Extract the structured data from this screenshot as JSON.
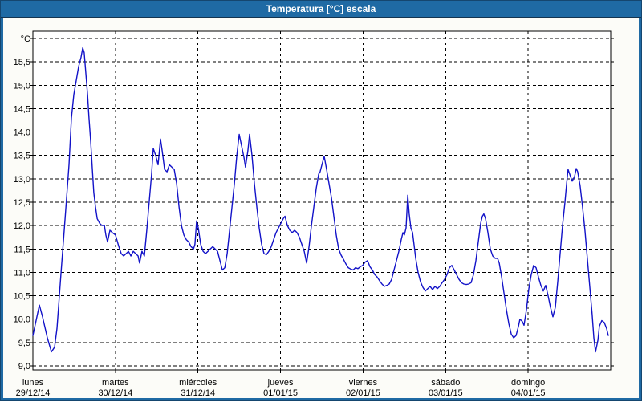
{
  "window": {
    "title": "Temperatura [°C] escala"
  },
  "colors": {
    "titlebar": "#1f6aa4",
    "titlebar_border": "#143450",
    "client_background": "#fcfcf8",
    "plot_background": "#ffffff",
    "grid": "#000000",
    "series_line": "#1212c8",
    "axis_text": "#000000"
  },
  "chart_data": {
    "type": "line",
    "title": "Temperatura [°C] escala",
    "grid": true,
    "y_axis": {
      "unit_label": "°C",
      "min": 9.0,
      "max": 16.0,
      "gridline_step": 0.5,
      "tick_labels": [
        "15,5",
        "15,0",
        "14,5",
        "14,0",
        "13,5",
        "13,0",
        "12,5",
        "12,0",
        "11,5",
        "11,0",
        "10,5",
        "10,0",
        "9,5",
        "9,0"
      ]
    },
    "x_axis": {
      "hours_total": 168,
      "days": [
        {
          "weekday": "lunes",
          "date": "29/12/14"
        },
        {
          "weekday": "martes",
          "date": "30/12/14"
        },
        {
          "weekday": "miércoles",
          "date": "31/12/14"
        },
        {
          "weekday": "jueves",
          "date": "01/01/15"
        },
        {
          "weekday": "viernes",
          "date": "02/01/15"
        },
        {
          "weekday": "sábado",
          "date": "03/01/15"
        },
        {
          "weekday": "domingo",
          "date": "04/01/15"
        }
      ]
    },
    "series": [
      {
        "name": "temperatura",
        "color": "#1212c8",
        "points": [
          [
            0,
            9.65
          ],
          [
            1.9,
            10.3
          ],
          [
            2.8,
            10.05
          ],
          [
            4.2,
            9.6
          ],
          [
            5.4,
            9.3
          ],
          [
            6.3,
            9.4
          ],
          [
            7,
            9.8
          ],
          [
            8.2,
            11
          ],
          [
            9.3,
            12.1
          ],
          [
            10.5,
            13.3
          ],
          [
            11.2,
            14.3
          ],
          [
            11.9,
            14.8
          ],
          [
            12.6,
            15.1
          ],
          [
            13.3,
            15.4
          ],
          [
            14,
            15.6
          ],
          [
            14.5,
            15.8
          ],
          [
            14.9,
            15.7
          ],
          [
            15.4,
            15.25
          ],
          [
            15.9,
            14.8
          ],
          [
            16.3,
            14.3
          ],
          [
            16.8,
            13.8
          ],
          [
            17.3,
            13.2
          ],
          [
            17.7,
            12.7
          ],
          [
            18.2,
            12.4
          ],
          [
            18.7,
            12.15
          ],
          [
            19.4,
            12.05
          ],
          [
            20.1,
            12
          ],
          [
            20.8,
            12
          ],
          [
            21.2,
            11.8
          ],
          [
            21.7,
            11.65
          ],
          [
            22.4,
            11.9
          ],
          [
            23.1,
            11.85
          ],
          [
            24,
            11.8
          ],
          [
            25,
            11.55
          ],
          [
            25.7,
            11.4
          ],
          [
            26.4,
            11.35
          ],
          [
            27.1,
            11.4
          ],
          [
            27.8,
            11.45
          ],
          [
            28.5,
            11.35
          ],
          [
            29.2,
            11.45
          ],
          [
            29.9,
            11.4
          ],
          [
            30.6,
            11.35
          ],
          [
            31,
            11.2
          ],
          [
            31.7,
            11.45
          ],
          [
            32.4,
            11.35
          ],
          [
            33.1,
            11.9
          ],
          [
            33.8,
            12.5
          ],
          [
            34.5,
            13.1
          ],
          [
            35,
            13.65
          ],
          [
            35.7,
            13.5
          ],
          [
            36.4,
            13.3
          ],
          [
            37.1,
            13.85
          ],
          [
            37.6,
            13.6
          ],
          [
            38.3,
            13.2
          ],
          [
            39,
            13.15
          ],
          [
            39.7,
            13.3
          ],
          [
            40.4,
            13.25
          ],
          [
            41.1,
            13.2
          ],
          [
            41.8,
            12.9
          ],
          [
            42.5,
            12.4
          ],
          [
            43.2,
            12
          ],
          [
            43.9,
            11.8
          ],
          [
            44.6,
            11.7
          ],
          [
            45.3,
            11.65
          ],
          [
            46,
            11.55
          ],
          [
            46.7,
            11.5
          ],
          [
            47.1,
            11.6
          ],
          [
            47.6,
            12.1
          ],
          [
            48.1,
            11.95
          ],
          [
            48.8,
            11.6
          ],
          [
            49.5,
            11.45
          ],
          [
            50.2,
            11.4
          ],
          [
            50.9,
            11.45
          ],
          [
            51.6,
            11.5
          ],
          [
            52.3,
            11.55
          ],
          [
            53,
            11.5
          ],
          [
            53.7,
            11.45
          ],
          [
            54.4,
            11.25
          ],
          [
            55.1,
            11.05
          ],
          [
            55.8,
            11.1
          ],
          [
            56.5,
            11.4
          ],
          [
            57.2,
            11.9
          ],
          [
            57.9,
            12.4
          ],
          [
            58.6,
            12.9
          ],
          [
            59.3,
            13.5
          ],
          [
            60,
            13.95
          ],
          [
            60.7,
            13.7
          ],
          [
            61.4,
            13.45
          ],
          [
            61.8,
            13.25
          ],
          [
            62.5,
            13.6
          ],
          [
            63,
            13.95
          ],
          [
            63.7,
            13.5
          ],
          [
            64.4,
            12.9
          ],
          [
            65.1,
            12.4
          ],
          [
            65.8,
            11.95
          ],
          [
            66.5,
            11.6
          ],
          [
            67.2,
            11.4
          ],
          [
            67.9,
            11.38
          ],
          [
            68.6,
            11.45
          ],
          [
            69.3,
            11.55
          ],
          [
            70,
            11.7
          ],
          [
            70.7,
            11.85
          ],
          [
            71.4,
            11.95
          ],
          [
            72.1,
            12.05
          ],
          [
            72.8,
            12.15
          ],
          [
            73.3,
            12.2
          ],
          [
            74,
            12
          ],
          [
            74.7,
            11.9
          ],
          [
            75.4,
            11.85
          ],
          [
            76.1,
            11.9
          ],
          [
            76.8,
            11.85
          ],
          [
            77.5,
            11.75
          ],
          [
            78.2,
            11.6
          ],
          [
            78.9,
            11.45
          ],
          [
            79.6,
            11.2
          ],
          [
            80.3,
            11.55
          ],
          [
            81,
            12
          ],
          [
            81.7,
            12.4
          ],
          [
            82.4,
            12.8
          ],
          [
            83.1,
            13.1
          ],
          [
            83.5,
            13.15
          ],
          [
            84.2,
            13.35
          ],
          [
            84.7,
            13.48
          ],
          [
            85.4,
            13.2
          ],
          [
            86.1,
            12.9
          ],
          [
            86.8,
            12.6
          ],
          [
            87.5,
            12.2
          ],
          [
            88.2,
            11.8
          ],
          [
            88.9,
            11.5
          ],
          [
            89.6,
            11.37
          ],
          [
            90.3,
            11.28
          ],
          [
            91,
            11.18
          ],
          [
            91.7,
            11.1
          ],
          [
            92.4,
            11.07
          ],
          [
            93.1,
            11.05
          ],
          [
            93.8,
            11.1
          ],
          [
            94.5,
            11.08
          ],
          [
            95.2,
            11.12
          ],
          [
            95.9,
            11.15
          ],
          [
            96.6,
            11.22
          ],
          [
            97.3,
            11.25
          ],
          [
            98,
            11.12
          ],
          [
            98.7,
            11.05
          ],
          [
            99.4,
            10.95
          ],
          [
            100.1,
            10.9
          ],
          [
            100.8,
            10.82
          ],
          [
            101.5,
            10.75
          ],
          [
            102.2,
            10.7
          ],
          [
            102.9,
            10.72
          ],
          [
            103.6,
            10.75
          ],
          [
            104.3,
            10.85
          ],
          [
            105,
            11.05
          ],
          [
            105.7,
            11.25
          ],
          [
            106.4,
            11.45
          ],
          [
            107.1,
            11.7
          ],
          [
            107.6,
            11.85
          ],
          [
            108,
            11.8
          ],
          [
            108.5,
            11.95
          ],
          [
            109,
            12.65
          ],
          [
            109.4,
            12.25
          ],
          [
            109.9,
            11.95
          ],
          [
            110.4,
            11.85
          ],
          [
            110.8,
            11.6
          ],
          [
            111.3,
            11.3
          ],
          [
            112,
            11
          ],
          [
            112.7,
            10.8
          ],
          [
            113.4,
            10.68
          ],
          [
            114.1,
            10.6
          ],
          [
            114.8,
            10.65
          ],
          [
            115.5,
            10.7
          ],
          [
            116.2,
            10.63
          ],
          [
            116.9,
            10.7
          ],
          [
            117.6,
            10.65
          ],
          [
            118.3,
            10.7
          ],
          [
            119,
            10.78
          ],
          [
            119.7,
            10.85
          ],
          [
            120.4,
            10.95
          ],
          [
            121.1,
            11.1
          ],
          [
            121.8,
            11.15
          ],
          [
            122.5,
            11.05
          ],
          [
            123.2,
            10.95
          ],
          [
            123.9,
            10.85
          ],
          [
            124.6,
            10.78
          ],
          [
            125.3,
            10.75
          ],
          [
            126,
            10.74
          ],
          [
            126.7,
            10.75
          ],
          [
            127.4,
            10.78
          ],
          [
            128.1,
            10.95
          ],
          [
            128.8,
            11.25
          ],
          [
            129.5,
            11.65
          ],
          [
            130.2,
            12.05
          ],
          [
            130.7,
            12.2
          ],
          [
            131.1,
            12.25
          ],
          [
            131.6,
            12.15
          ],
          [
            132.3,
            11.85
          ],
          [
            133,
            11.5
          ],
          [
            133.7,
            11.35
          ],
          [
            134.4,
            11.3
          ],
          [
            135.1,
            11.3
          ],
          [
            135.6,
            11.2
          ],
          [
            136.3,
            10.9
          ],
          [
            137,
            10.55
          ],
          [
            137.7,
            10.2
          ],
          [
            138.4,
            9.9
          ],
          [
            139.1,
            9.68
          ],
          [
            139.8,
            9.6
          ],
          [
            140.5,
            9.65
          ],
          [
            141.2,
            9.85
          ],
          [
            141.6,
            10
          ],
          [
            142.3,
            9.95
          ],
          [
            142.8,
            9.87
          ],
          [
            143.5,
            10.2
          ],
          [
            144.2,
            10.65
          ],
          [
            144.9,
            10.95
          ],
          [
            145.6,
            11.15
          ],
          [
            146.3,
            11.1
          ],
          [
            147,
            10.9
          ],
          [
            147.7,
            10.72
          ],
          [
            148.4,
            10.6
          ],
          [
            149.1,
            10.72
          ],
          [
            149.8,
            10.5
          ],
          [
            150.5,
            10.25
          ],
          [
            151.2,
            10.05
          ],
          [
            151.9,
            10.25
          ],
          [
            152.6,
            10.8
          ],
          [
            153.3,
            11.4
          ],
          [
            154,
            12
          ],
          [
            154.7,
            12.5
          ],
          [
            155.2,
            12.9
          ],
          [
            155.6,
            13.2
          ],
          [
            156.3,
            13.05
          ],
          [
            156.8,
            12.95
          ],
          [
            157.5,
            13.05
          ],
          [
            158,
            13.22
          ],
          [
            158.4,
            13.15
          ],
          [
            159.1,
            12.85
          ],
          [
            159.8,
            12.4
          ],
          [
            160.5,
            11.9
          ],
          [
            161.2,
            11.3
          ],
          [
            161.9,
            10.7
          ],
          [
            162.6,
            10.1
          ],
          [
            163.1,
            9.6
          ],
          [
            163.6,
            9.3
          ],
          [
            164.3,
            9.55
          ],
          [
            164.7,
            9.85
          ],
          [
            165.4,
            9.97
          ],
          [
            166.1,
            9.93
          ],
          [
            166.8,
            9.8
          ],
          [
            167.3,
            9.65
          ]
        ]
      }
    ]
  }
}
